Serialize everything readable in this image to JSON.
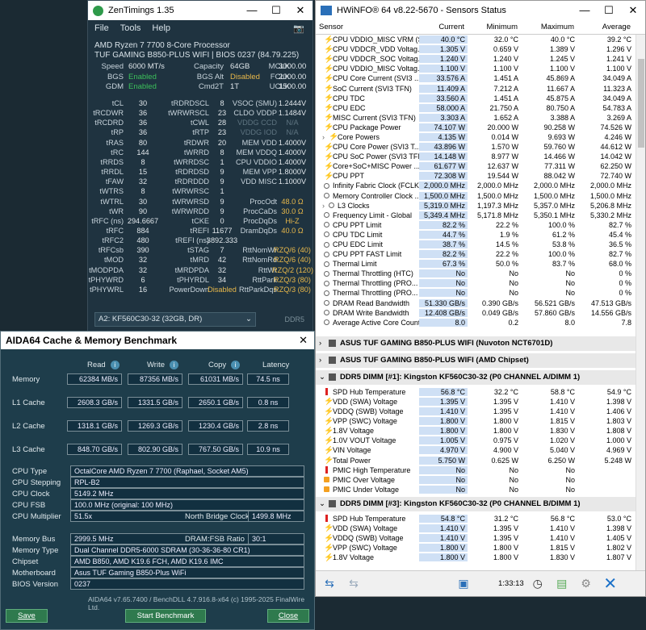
{
  "zen": {
    "title": "ZenTimings 1.35",
    "menu": [
      "File",
      "Tools",
      "Help"
    ],
    "cpu": "AMD Ryzen 7 7700 8-Core Processor",
    "board": "TUF GAMING B850-PLUS WIFI | BIOS 0237 (84.79.225)",
    "top": [
      {
        "l1": "Speed",
        "v1": "6000 MT/s",
        "l2": "Capacity",
        "v2": "64GB",
        "l3": "MCLK",
        "v3": "3000.00"
      },
      {
        "l1": "BGS",
        "v1": "Enabled",
        "l2": "BGS Alt",
        "v2": "Disabled",
        "l3": "FCLK",
        "v3": "2000.00"
      },
      {
        "l1": "GDM",
        "v1": "Enabled",
        "l2": "Cmd2T",
        "v2": "1T",
        "l3": "UCLK",
        "v3": "1500.00"
      }
    ],
    "rows": [
      {
        "l1": "tCL",
        "v1": "30",
        "l2": "tRDRDSCL",
        "v2": "8",
        "l3": "VSOC (SMU)",
        "v3": "1.2444V"
      },
      {
        "l1": "tRCDWR",
        "v1": "36",
        "l2": "tWRWRSCL",
        "v2": "23",
        "l3": "CLDO VDDP",
        "v3": "1.1484V"
      },
      {
        "l1": "tRCDRD",
        "v1": "36",
        "l2": "tCWL",
        "v2": "28",
        "l3": "VDDG CCD",
        "v3": "N/A"
      },
      {
        "l1": "tRP",
        "v1": "36",
        "l2": "tRTP",
        "v2": "23",
        "l3": "VDDG IOD",
        "v3": "N/A"
      },
      {
        "l1": "tRAS",
        "v1": "80",
        "l2": "tRDWR",
        "v2": "20",
        "l3": "MEM VDD",
        "v3": "1.4000V"
      },
      {
        "l1": "tRC",
        "v1": "144",
        "l2": "tWRRD",
        "v2": "8",
        "l3": "MEM VDDQ",
        "v3": "1.4000V"
      },
      {
        "l1": "tRRDS",
        "v1": "8",
        "l2": "tWRRDSC",
        "v2": "1",
        "l3": "CPU VDDIO",
        "v3": "1.4000V"
      },
      {
        "l1": "tRRDL",
        "v1": "15",
        "l2": "tRDRDSD",
        "v2": "9",
        "l3": "MEM VPP",
        "v3": "1.8000V"
      },
      {
        "l1": "tFAW",
        "v1": "32",
        "l2": "tRDRDDD",
        "v2": "9",
        "l3": "VDD MISC",
        "v3": "1.1000V"
      },
      {
        "l1": "tWTRS",
        "v1": "8",
        "l2": "tWRWRSC",
        "v2": "1",
        "l3": "",
        "v3": ""
      },
      {
        "l1": "tWTRL",
        "v1": "30",
        "l2": "tWRWRSD",
        "v2": "9",
        "l3": "ProcOdt",
        "v3": "48.0 Ω"
      },
      {
        "l1": "tWR",
        "v1": "90",
        "l2": "tWRWRDD",
        "v2": "9",
        "l3": "ProcCaDs",
        "v3": "30.0 Ω"
      },
      {
        "l1": "tRFC (ns)",
        "v1": "294.6667",
        "l2": "tCKE",
        "v2": "0",
        "l3": "ProcDqDs",
        "v3": "Hi-Z"
      },
      {
        "l1": "tRFC",
        "v1": "884",
        "l2": "tREFI",
        "v2": "11677",
        "l3": "DramDqDs",
        "v3": "40.0 Ω"
      },
      {
        "l1": "tRFC2",
        "v1": "480",
        "l2": "tREFI (ns)",
        "v2": "3892.333",
        "l3": "",
        "v3": ""
      },
      {
        "l1": "tRFCsb",
        "v1": "390",
        "l2": "tSTAG",
        "v2": "7",
        "l3": "RttNomWr",
        "v3": "RZQ/6 (40)"
      },
      {
        "l1": "tMOD",
        "v1": "32",
        "l2": "tMRD",
        "v2": "42",
        "l3": "RttNomRd",
        "v3": "RZQ/6 (40)"
      },
      {
        "l1": "tMODPDA",
        "v1": "32",
        "l2": "tMRDPDA",
        "v2": "32",
        "l3": "RttWr",
        "v3": "RZQ/2 (120)"
      },
      {
        "l1": "tPHYWRD",
        "v1": "6",
        "l2": "tPHYRDL",
        "v2": "34",
        "l3": "RttPark",
        "v3": "RZQ/3 (80)"
      },
      {
        "l1": "tPHYWRL",
        "v1": "16",
        "l2": "PowerDown",
        "v2": "Disabled",
        "l3": "RttParkDqs",
        "v3": "RZQ/3 (80)"
      }
    ],
    "slot": "A2: KF560C30-32 (32GB, DR)",
    "tag": "DDR5"
  },
  "hw": {
    "title": "HWiNFO® 64 v8.22-5670 - Sensors Status",
    "cols": [
      "Sensor",
      "Current",
      "Minimum",
      "Maximum",
      "Average"
    ],
    "rows1": [
      {
        "i": "bolt",
        "n": "CPU VDDIO_MISC VRM (SVI3...",
        "c": "40.0 °C",
        "mi": "32.0 °C",
        "ma": "40.0 °C",
        "a": "39.2 °C"
      },
      {
        "i": "bolt",
        "n": "CPU VDDCR_VDD Voltag...",
        "c": "1.305 V",
        "mi": "0.659 V",
        "ma": "1.389 V",
        "a": "1.296 V"
      },
      {
        "i": "bolt",
        "n": "CPU VDDCR_SOC Voltag...",
        "c": "1.240 V",
        "mi": "1.240 V",
        "ma": "1.245 V",
        "a": "1.241 V"
      },
      {
        "i": "bolt",
        "n": "CPU VDDIO_MISC Voltag...",
        "c": "1.100 V",
        "mi": "1.100 V",
        "ma": "1.100 V",
        "a": "1.100 V"
      },
      {
        "i": "bolt",
        "n": "CPU Core Current (SVI3 ...",
        "c": "33.576 A",
        "mi": "1.451 A",
        "ma": "45.869 A",
        "a": "34.049 A"
      },
      {
        "i": "bolt",
        "n": "SoC Current (SVI3 TFN)",
        "c": "11.409 A",
        "mi": "7.212 A",
        "ma": "11.667 A",
        "a": "11.323 A"
      },
      {
        "i": "bolt",
        "n": "CPU TDC",
        "c": "33.560 A",
        "mi": "1.451 A",
        "ma": "45.875 A",
        "a": "34.049 A"
      },
      {
        "i": "bolt",
        "n": "CPU EDC",
        "c": "58.000 A",
        "mi": "21.750 A",
        "ma": "80.750 A",
        "a": "54.783 A"
      },
      {
        "i": "bolt",
        "n": "MISC Current (SVI3 TFN)",
        "c": "3.303 A",
        "mi": "1.652 A",
        "ma": "3.388 A",
        "a": "3.269 A"
      },
      {
        "i": "bolt",
        "n": "CPU Package Power",
        "c": "74.107 W",
        "mi": "20.000 W",
        "ma": "90.258 W",
        "a": "74.526 W"
      },
      {
        "i": "bolt",
        "n": "Core Powers",
        "c": "4.135 W",
        "mi": "0.014 W",
        "ma": "9.693 W",
        "a": "4.246 W",
        "sub": true
      },
      {
        "i": "bolt",
        "n": "CPU Core Power (SVI3 T...",
        "c": "43.896 W",
        "mi": "1.570 W",
        "ma": "59.760 W",
        "a": "44.612 W"
      },
      {
        "i": "bolt",
        "n": "CPU SoC Power (SVI3 TFN)",
        "c": "14.148 W",
        "mi": "8.977 W",
        "ma": "14.466 W",
        "a": "14.042 W"
      },
      {
        "i": "bolt",
        "n": "Core+SoC+MISC Power ...",
        "c": "61.677 W",
        "mi": "12.637 W",
        "ma": "77.311 W",
        "a": "62.250 W"
      },
      {
        "i": "bolt",
        "n": "CPU PPT",
        "c": "72.308 W",
        "mi": "19.544 W",
        "ma": "88.042 W",
        "a": "72.740 W"
      },
      {
        "i": "clk",
        "n": "Infinity Fabric Clock (FCLK)",
        "c": "2,000.0 MHz",
        "mi": "2,000.0 MHz",
        "ma": "2,000.0 MHz",
        "a": "2,000.0 MHz"
      },
      {
        "i": "clk",
        "n": "Memory Controller Clock ...",
        "c": "1,500.0 MHz",
        "mi": "1,500.0 MHz",
        "ma": "1,500.0 MHz",
        "a": "1,500.0 MHz"
      },
      {
        "i": "clk",
        "n": "L3 Clocks",
        "c": "5,319.0 MHz",
        "mi": "1,197.3 MHz",
        "ma": "5,357.0 MHz",
        "a": "5,206.8 MHz",
        "sub": true
      },
      {
        "i": "clk",
        "n": "Frequency Limit - Global",
        "c": "5,349.4 MHz",
        "mi": "5,171.8 MHz",
        "ma": "5,350.1 MHz",
        "a": "5,330.2 MHz"
      },
      {
        "i": "clk",
        "n": "CPU PPT Limit",
        "c": "82.2 %",
        "mi": "22.2 %",
        "ma": "100.0 %",
        "a": "82.7 %"
      },
      {
        "i": "clk",
        "n": "CPU TDC Limit",
        "c": "44.7 %",
        "mi": "1.9 %",
        "ma": "61.2 %",
        "a": "45.4 %"
      },
      {
        "i": "clk",
        "n": "CPU EDC Limit",
        "c": "38.7 %",
        "mi": "14.5 %",
        "ma": "53.8 %",
        "a": "36.5 %"
      },
      {
        "i": "clk",
        "n": "CPU PPT FAST Limit",
        "c": "82.2 %",
        "mi": "22.2 %",
        "ma": "100.0 %",
        "a": "82.7 %"
      },
      {
        "i": "clk",
        "n": "Thermal Limit",
        "c": "67.3 %",
        "mi": "50.0 %",
        "ma": "83.7 %",
        "a": "68.0 %"
      },
      {
        "i": "clk",
        "n": "Thermal Throttling (HTC)",
        "c": "No",
        "mi": "No",
        "ma": "No",
        "a": "0 %"
      },
      {
        "i": "clk",
        "n": "Thermal Throttling (PRO...",
        "c": "No",
        "mi": "No",
        "ma": "No",
        "a": "0 %"
      },
      {
        "i": "clk",
        "n": "Thermal Throttling (PRO...",
        "c": "No",
        "mi": "No",
        "ma": "No",
        "a": "0 %"
      },
      {
        "i": "clk",
        "n": "DRAM Read Bandwidth",
        "c": "51.330 GB/s",
        "mi": "0.390 GB/s",
        "ma": "56.521 GB/s",
        "a": "47.513 GB/s"
      },
      {
        "i": "clk",
        "n": "DRAM Write Bandwidth",
        "c": "12.408 GB/s",
        "mi": "0.049 GB/s",
        "ma": "57.860 GB/s",
        "a": "14.556 GB/s"
      },
      {
        "i": "clk",
        "n": "Average Active Core Count",
        "c": "8.0",
        "mi": "0.2",
        "ma": "8.0",
        "a": "7.8"
      }
    ],
    "groups": [
      "ASUS TUF GAMING B850-PLUS WIFI (Nuvoton NCT6701D)",
      "ASUS TUF GAMING B850-PLUS WIFI (AMD Chipset)",
      "DDR5 DIMM [#1]: Kingston KF560C30-32 (P0 CHANNEL A/DIMM 1)",
      "DDR5 DIMM [#3]: Kingston KF560C30-32 (P0 CHANNEL B/DIMM 1)"
    ],
    "rows2": [
      {
        "i": "therm",
        "n": "SPD Hub Temperature",
        "c": "56.8 °C",
        "mi": "32.2 °C",
        "ma": "58.8 °C",
        "a": "54.9 °C"
      },
      {
        "i": "bolt",
        "n": "VDD (SWA) Voltage",
        "c": "1.395 V",
        "mi": "1.395 V",
        "ma": "1.410 V",
        "a": "1.398 V"
      },
      {
        "i": "bolt",
        "n": "VDDQ (SWB) Voltage",
        "c": "1.410 V",
        "mi": "1.395 V",
        "ma": "1.410 V",
        "a": "1.406 V"
      },
      {
        "i": "bolt",
        "n": "VPP (SWC) Voltage",
        "c": "1.800 V",
        "mi": "1.800 V",
        "ma": "1.815 V",
        "a": "1.803 V"
      },
      {
        "i": "bolt",
        "n": "1.8V Voltage",
        "c": "1.800 V",
        "mi": "1.800 V",
        "ma": "1.830 V",
        "a": "1.808 V"
      },
      {
        "i": "bolt",
        "n": "1.0V VOUT Voltage",
        "c": "1.005 V",
        "mi": "0.975 V",
        "ma": "1.020 V",
        "a": "1.000 V"
      },
      {
        "i": "bolt",
        "n": "VIN Voltage",
        "c": "4.970 V",
        "mi": "4.900 V",
        "ma": "5.040 V",
        "a": "4.969 V"
      },
      {
        "i": "bolt",
        "n": "Total Power",
        "c": "5.750 W",
        "mi": "0.625 W",
        "ma": "6.250 W",
        "a": "5.248 W"
      },
      {
        "i": "therm",
        "n": "PMIC High Temperature",
        "c": "No",
        "mi": "No",
        "ma": "No",
        "a": ""
      },
      {
        "i": "pl",
        "n": "PMIC Over Voltage",
        "c": "No",
        "mi": "No",
        "ma": "No",
        "a": ""
      },
      {
        "i": "pl",
        "n": "PMIC Under Voltage",
        "c": "No",
        "mi": "No",
        "ma": "No",
        "a": ""
      }
    ],
    "rows3": [
      {
        "i": "therm",
        "n": "SPD Hub Temperature",
        "c": "54.8 °C",
        "mi": "31.2 °C",
        "ma": "56.8 °C",
        "a": "53.0 °C"
      },
      {
        "i": "bolt",
        "n": "VDD (SWA) Voltage",
        "c": "1.410 V",
        "mi": "1.395 V",
        "ma": "1.410 V",
        "a": "1.398 V"
      },
      {
        "i": "bolt",
        "n": "VDDQ (SWB) Voltage",
        "c": "1.410 V",
        "mi": "1.395 V",
        "ma": "1.410 V",
        "a": "1.405 V"
      },
      {
        "i": "bolt",
        "n": "VPP (SWC) Voltage",
        "c": "1.800 V",
        "mi": "1.800 V",
        "ma": "1.815 V",
        "a": "1.802 V"
      },
      {
        "i": "bolt",
        "n": "1.8V Voltage",
        "c": "1.800 V",
        "mi": "1.800 V",
        "ma": "1.830 V",
        "a": "1.807 V"
      }
    ],
    "timer": "1:33:13"
  },
  "aida": {
    "title": "AIDA64 Cache & Memory Benchmark",
    "heads": [
      "Read",
      "Write",
      "Copy",
      "Latency"
    ],
    "bench": [
      {
        "l": "Memory",
        "r": "62384 MB/s",
        "w": "87356 MB/s",
        "c": "61031 MB/s",
        "lat": "74.5 ns"
      },
      {
        "l": "L1 Cache",
        "r": "2608.3 GB/s",
        "w": "1331.5 GB/s",
        "c": "2650.1 GB/s",
        "lat": "0.8 ns"
      },
      {
        "l": "L2 Cache",
        "r": "1318.1 GB/s",
        "w": "1269.3 GB/s",
        "c": "1230.4 GB/s",
        "lat": "2.8 ns"
      },
      {
        "l": "L3 Cache",
        "r": "848.70 GB/s",
        "w": "802.90 GB/s",
        "c": "767.50 GB/s",
        "lat": "10.9 ns"
      }
    ],
    "cpuType": "OctalCore AMD Ryzen 7 7700  (Raphael, Socket AM5)",
    "cpuStep": "RPL-B2",
    "cpuClock": "5149.2 MHz",
    "cpuFsb": "100.0 MHz  (original: 100 MHz)",
    "cpuMult": "51.5x",
    "nbLabel": "North Bridge Clock",
    "nbClock": "1499.8 MHz",
    "memBus": "2999.5 MHz",
    "ratioLabel": "DRAM:FSB Ratio",
    "ratio": "30:1",
    "memType": "Dual Channel DDR5-6000 SDRAM  (30-36-36-80 CR1)",
    "chipset": "AMD B850, AMD K19.6 FCH, AMD K19.6 IMC",
    "mobo": "Asus TUF Gaming B850-Plus WiFi",
    "bios": "0237",
    "labels": {
      "cpuType": "CPU Type",
      "cpuStep": "CPU Stepping",
      "cpuClock": "CPU Clock",
      "cpuFsb": "CPU FSB",
      "cpuMult": "CPU Multiplier",
      "memBus": "Memory Bus",
      "memType": "Memory Type",
      "chipset": "Chipset",
      "mobo": "Motherboard",
      "bios": "BIOS Version"
    },
    "footer": "AIDA64 v7.65.7400 / BenchDLL 4.7.916.8-x64  (c) 1995-2025 FinalWire Ltd.",
    "save": "Save",
    "start": "Start Benchmark",
    "close": "Close"
  }
}
